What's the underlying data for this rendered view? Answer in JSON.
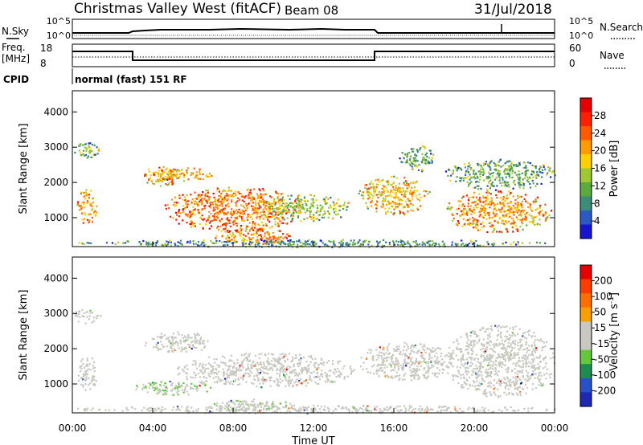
{
  "header": {
    "title": "Christmas Valley West (fitACF)",
    "beam": "Beam 08",
    "date": "31/Jul/2018"
  },
  "noise_panel": {
    "left_label": "N.Sky",
    "right_label": "N.Search",
    "left_ticks": [
      "10^5",
      "10^0"
    ],
    "right_ticks": [
      "10^5",
      "10^0"
    ]
  },
  "freq_panel": {
    "left_label_1": "Freq.",
    "left_label_2": "[MHz]",
    "left_ticks": [
      "18",
      "8"
    ],
    "right_label": "Nave",
    "right_ticks": [
      "60",
      "0"
    ]
  },
  "cpid": {
    "label": "CPID",
    "text": "normal (fast) 151 RF"
  },
  "colors": {
    "power": [
      "#1414d2",
      "#2a5ac0",
      "#3c8c7a",
      "#5aaa3c",
      "#a0c832",
      "#ffd000",
      "#ff9a00",
      "#ff5a00",
      "#ff2000",
      "#e60000"
    ],
    "velocity": [
      "#1e28b4",
      "#2850c8",
      "#1e8c50",
      "#64c83c",
      "#c8c8c0",
      "#c8c8c0",
      "#f5a000",
      "#ff6e00",
      "#ff3c00",
      "#e60000"
    ]
  },
  "chart_data": [
    {
      "type": "heatmap",
      "panel": "power",
      "ylabel": "Slant Range [km]",
      "ylim": [
        180,
        4600
      ],
      "yticks": [
        "4000",
        "3000",
        "2000",
        "1000"
      ],
      "colorbar": {
        "label": "Power [dB]",
        "range": [
          0,
          32
        ],
        "ticks": [
          "28",
          "24",
          "20",
          "16",
          "12",
          "8",
          "4"
        ]
      },
      "blobs": [
        {
          "t": [
            0.0,
            1.4
          ],
          "r": [
            2700,
            3150
          ],
          "v": 12
        },
        {
          "t": [
            0.2,
            1.2
          ],
          "r": [
            800,
            1850
          ],
          "v": 20
        },
        {
          "t": [
            3.5,
            5.3
          ],
          "r": [
            1900,
            2500
          ],
          "v": 19
        },
        {
          "t": [
            4.0,
            7.0
          ],
          "r": [
            2050,
            2450
          ],
          "v": 20
        },
        {
          "t": [
            4.5,
            11.5
          ],
          "r": [
            600,
            1900
          ],
          "v": 23
        },
        {
          "t": [
            7.0,
            11.0
          ],
          "r": [
            250,
            700
          ],
          "v": 22
        },
        {
          "t": [
            9.0,
            14.0
          ],
          "r": [
            900,
            1700
          ],
          "v": 14
        },
        {
          "t": [
            14.2,
            17.8
          ],
          "r": [
            1100,
            2200
          ],
          "v": 19
        },
        {
          "t": [
            16.2,
            18.0
          ],
          "r": [
            2300,
            3100
          ],
          "v": 11
        },
        {
          "t": [
            18.5,
            23.8
          ],
          "r": [
            600,
            1800
          ],
          "v": 21
        },
        {
          "t": [
            18.5,
            24.0
          ],
          "r": [
            1800,
            2700
          ],
          "v": 11
        },
        {
          "t": [
            0.0,
            24.0
          ],
          "r": [
            180,
            400
          ],
          "v": 9
        }
      ]
    },
    {
      "type": "heatmap",
      "panel": "velocity",
      "xlabel": "Time UT",
      "ylabel": "Slant Range [km]",
      "ylim": [
        180,
        4600
      ],
      "yticks": [
        "4000",
        "3000",
        "2000",
        "1000"
      ],
      "xticks": [
        "00:00",
        "04:00",
        "08:00",
        "12:00",
        "16:00",
        "20:00",
        "00:00"
      ],
      "xlim": [
        0,
        24
      ],
      "colorbar": {
        "label": "Velocity [m s^-1]",
        "range": [
          -250,
          250
        ],
        "ticks": [
          "200",
          "100",
          "50",
          "15",
          "-15",
          "-50",
          "-100",
          "-200"
        ]
      },
      "blobs": [
        {
          "t": [
            0.0,
            1.4
          ],
          "r": [
            2700,
            3150
          ],
          "v": 0
        },
        {
          "t": [
            0.2,
            1.2
          ],
          "r": [
            800,
            1850
          ],
          "v": 0
        },
        {
          "t": [
            3.5,
            7.0
          ],
          "r": [
            1900,
            2500
          ],
          "v": 0
        },
        {
          "t": [
            3.0,
            7.0
          ],
          "r": [
            700,
            1100
          ],
          "v": -45
        },
        {
          "t": [
            5.0,
            14.0
          ],
          "r": [
            900,
            1900
          ],
          "v": 0
        },
        {
          "t": [
            7.0,
            11.0
          ],
          "r": [
            250,
            600
          ],
          "v": -40
        },
        {
          "t": [
            14.2,
            19.0
          ],
          "r": [
            1100,
            2200
          ],
          "v": 0
        },
        {
          "t": [
            18.5,
            24.0
          ],
          "r": [
            600,
            2700
          ],
          "v": 0
        },
        {
          "t": [
            0.0,
            24.0
          ],
          "r": [
            180,
            420
          ],
          "v": 20
        }
      ]
    }
  ]
}
